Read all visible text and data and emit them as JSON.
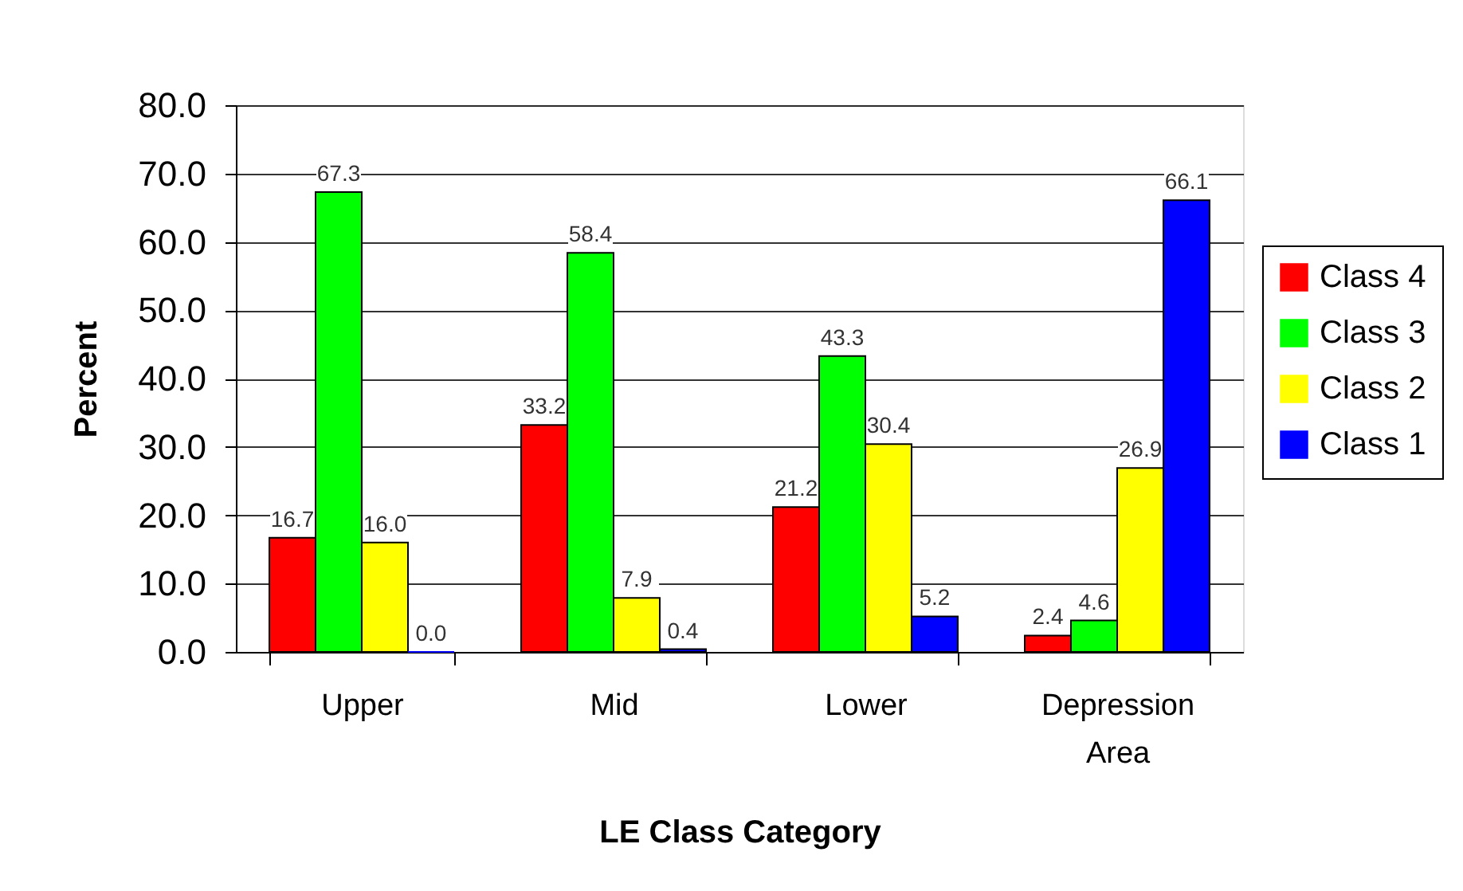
{
  "chart_data": {
    "type": "bar",
    "xlabel": "LE Class Category",
    "ylabel": "Percent",
    "categories": [
      "Upper",
      "Mid",
      "Lower",
      "Depression Area"
    ],
    "series": [
      {
        "name": "Class 4",
        "color": "#ff0000",
        "values": [
          16.7,
          33.2,
          21.2,
          2.4
        ],
        "value_labels": [
          "16.7",
          "33.2",
          "21.2",
          "2.4"
        ]
      },
      {
        "name": "Class 3",
        "color": "#00ff00",
        "values": [
          67.3,
          58.4,
          43.3,
          4.6
        ],
        "value_labels": [
          "67.3",
          "58.4",
          "43.3",
          "4.6"
        ]
      },
      {
        "name": "Class 2",
        "color": "#ffff00",
        "values": [
          16.0,
          7.9,
          30.4,
          26.9
        ],
        "value_labels": [
          "16.0",
          "7.9",
          "30.4",
          "26.9"
        ]
      },
      {
        "name": "Class 1",
        "color": "#0000ff",
        "values": [
          0.0,
          0.4,
          5.2,
          66.1
        ],
        "value_labels": [
          "0.0",
          "0.4",
          "5.2",
          "66.1"
        ]
      }
    ],
    "ylim": [
      0,
      80
    ],
    "yticks": [
      {
        "value": 0,
        "label": "0.0"
      },
      {
        "value": 10,
        "label": "10.0"
      },
      {
        "value": 20,
        "label": "20.0"
      },
      {
        "value": 30,
        "label": "30.0"
      },
      {
        "value": 40,
        "label": "40.0"
      },
      {
        "value": 50,
        "label": "50.0"
      },
      {
        "value": 60,
        "label": "60.0"
      },
      {
        "value": 70,
        "label": "70.0"
      },
      {
        "value": 80,
        "label": "80.0"
      }
    ],
    "grid": "y",
    "legend": "right"
  }
}
